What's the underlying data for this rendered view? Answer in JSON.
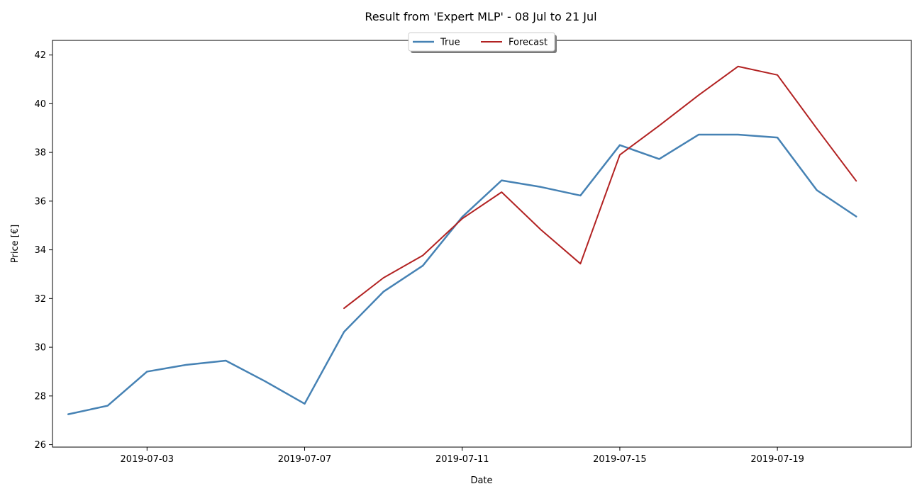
{
  "chart_data": {
    "type": "line",
    "title": "Result from 'Expert MLP' - 08 Jul to 21 Jul",
    "xlabel": "Date",
    "ylabel": "Price [€]",
    "xlim": [
      "2019-06-30T14:24",
      "2019-07-22T09:36"
    ],
    "ylim": [
      25.9,
      42.6
    ],
    "x_ticks": [
      "2019-07-03",
      "2019-07-07",
      "2019-07-11",
      "2019-07-15",
      "2019-07-19"
    ],
    "y_ticks": [
      26,
      28,
      30,
      32,
      34,
      36,
      38,
      40,
      42
    ],
    "grid": false,
    "legend_placement": "top-center",
    "series": [
      {
        "name": "True",
        "color": "#4682b4",
        "x": [
          "2019-07-01",
          "2019-07-02",
          "2019-07-03",
          "2019-07-04",
          "2019-07-05",
          "2019-07-06",
          "2019-07-07",
          "2019-07-08",
          "2019-07-09",
          "2019-07-10",
          "2019-07-11",
          "2019-07-12",
          "2019-07-13",
          "2019-07-14",
          "2019-07-15",
          "2019-07-16",
          "2019-07-17",
          "2019-07-18",
          "2019-07-19",
          "2019-07-20",
          "2019-07-21"
        ],
        "y": [
          27.25,
          27.6,
          29.0,
          29.28,
          29.45,
          28.6,
          27.68,
          30.63,
          32.28,
          33.35,
          35.35,
          36.85,
          36.58,
          36.23,
          38.3,
          37.73,
          38.73,
          38.73,
          38.61,
          36.45,
          35.37
        ]
      },
      {
        "name": "Forecast",
        "color": "#b22222",
        "x": [
          "2019-07-08",
          "2019-07-09",
          "2019-07-10",
          "2019-07-11",
          "2019-07-12",
          "2019-07-13",
          "2019-07-14",
          "2019-07-15",
          "2019-07-16",
          "2019-07-17",
          "2019-07-18",
          "2019-07-19",
          "2019-07-20",
          "2019-07-21"
        ],
        "y": [
          31.6,
          32.85,
          33.77,
          35.28,
          36.37,
          34.82,
          33.43,
          37.9,
          39.1,
          40.35,
          41.53,
          41.18,
          38.98,
          36.83
        ]
      }
    ]
  }
}
